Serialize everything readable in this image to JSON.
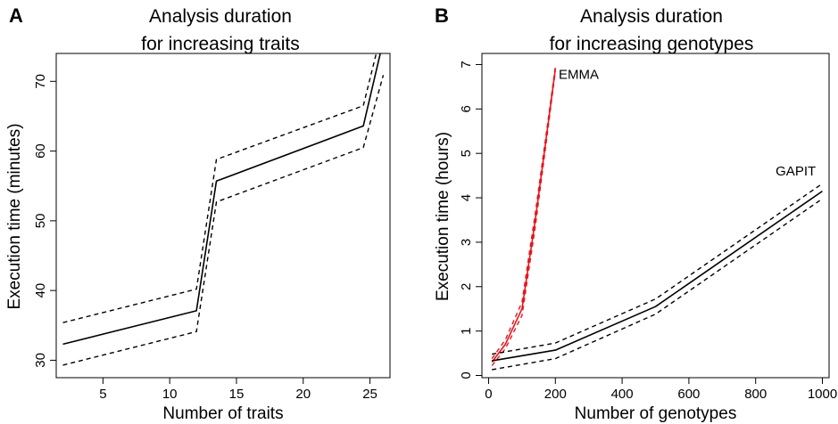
{
  "chart_data": [
    {
      "type": "line",
      "panel_label": "A",
      "title": "Analysis duration\nfor increasing traits",
      "xlabel": "Number of traits",
      "ylabel": "Execution time (minutes)",
      "xlim": [
        1.5,
        26.5
      ],
      "ylim": [
        27.5,
        74
      ],
      "xticks": [
        5,
        10,
        15,
        20,
        25
      ],
      "yticks": [
        30,
        40,
        50,
        60,
        70
      ],
      "y_tick_orientation": "rotated",
      "grid": false,
      "series": [
        {
          "role": "mean",
          "style": "solid",
          "color": "#000000",
          "x": [
            2,
            12,
            13.5,
            24.5,
            25.8
          ],
          "y": [
            32.3,
            37.1,
            55.7,
            63.6,
            74.2
          ]
        },
        {
          "role": "upper-bound",
          "style": "dashed",
          "color": "#000000",
          "x": [
            2,
            12,
            13.5,
            24.5,
            25.5
          ],
          "y": [
            35.4,
            40.2,
            58.8,
            66.5,
            74.2
          ]
        },
        {
          "role": "lower-bound",
          "style": "dashed",
          "color": "#000000",
          "x": [
            2,
            12,
            13.5,
            24.5,
            26
          ],
          "y": [
            29.3,
            34.1,
            52.7,
            60.5,
            70.9
          ]
        }
      ]
    },
    {
      "type": "line",
      "panel_label": "B",
      "title": "Analysis duration\nfor increasing genotypes",
      "xlabel": "Number of genotypes",
      "ylabel": "Execution time (hours)",
      "xlim": [
        -20,
        1020
      ],
      "ylim": [
        -0.05,
        7.25
      ],
      "xticks": [
        0,
        200,
        400,
        600,
        800,
        1000
      ],
      "yticks": [
        0,
        1,
        2,
        3,
        4,
        5,
        6,
        7
      ],
      "y_tick_orientation": "rotated",
      "grid": false,
      "series": [
        {
          "name": "EMMA",
          "role": "mean",
          "style": "solid",
          "color": "#e8141b",
          "x": [
            10,
            50,
            100,
            140,
            170,
            200
          ],
          "y": [
            0.3,
            0.7,
            1.5,
            3.5,
            5.2,
            6.9
          ]
        },
        {
          "name": "EMMA",
          "role": "upper-bound",
          "style": "dashed",
          "color": "#e8141b",
          "x": [
            10,
            50,
            100,
            140,
            170,
            200
          ],
          "y": [
            0.38,
            0.8,
            1.65,
            3.65,
            5.3,
            6.95
          ]
        },
        {
          "name": "EMMA",
          "role": "lower-bound",
          "style": "dashed",
          "color": "#e8141b",
          "x": [
            10,
            50,
            100,
            140,
            170,
            200
          ],
          "y": [
            0.22,
            0.6,
            1.35,
            3.35,
            5.1,
            6.85
          ]
        },
        {
          "name": "GAPIT",
          "role": "mean",
          "style": "solid",
          "color": "#000000",
          "x": [
            10,
            200,
            500,
            1000
          ],
          "y": [
            0.33,
            0.57,
            1.55,
            4.15
          ]
        },
        {
          "name": "GAPIT",
          "role": "upper-bound",
          "style": "dashed",
          "color": "#000000",
          "x": [
            10,
            200,
            500,
            1000
          ],
          "y": [
            0.48,
            0.73,
            1.72,
            4.32
          ]
        },
        {
          "name": "GAPIT",
          "role": "lower-bound",
          "style": "dashed",
          "color": "#000000",
          "x": [
            10,
            200,
            500,
            1000
          ],
          "y": [
            0.13,
            0.38,
            1.38,
            3.98
          ]
        }
      ],
      "annotations": [
        {
          "text": "EMMA",
          "x": 210,
          "y": 6.78
        },
        {
          "text": "GAPIT",
          "x": 860,
          "y": 4.6
        }
      ]
    }
  ]
}
